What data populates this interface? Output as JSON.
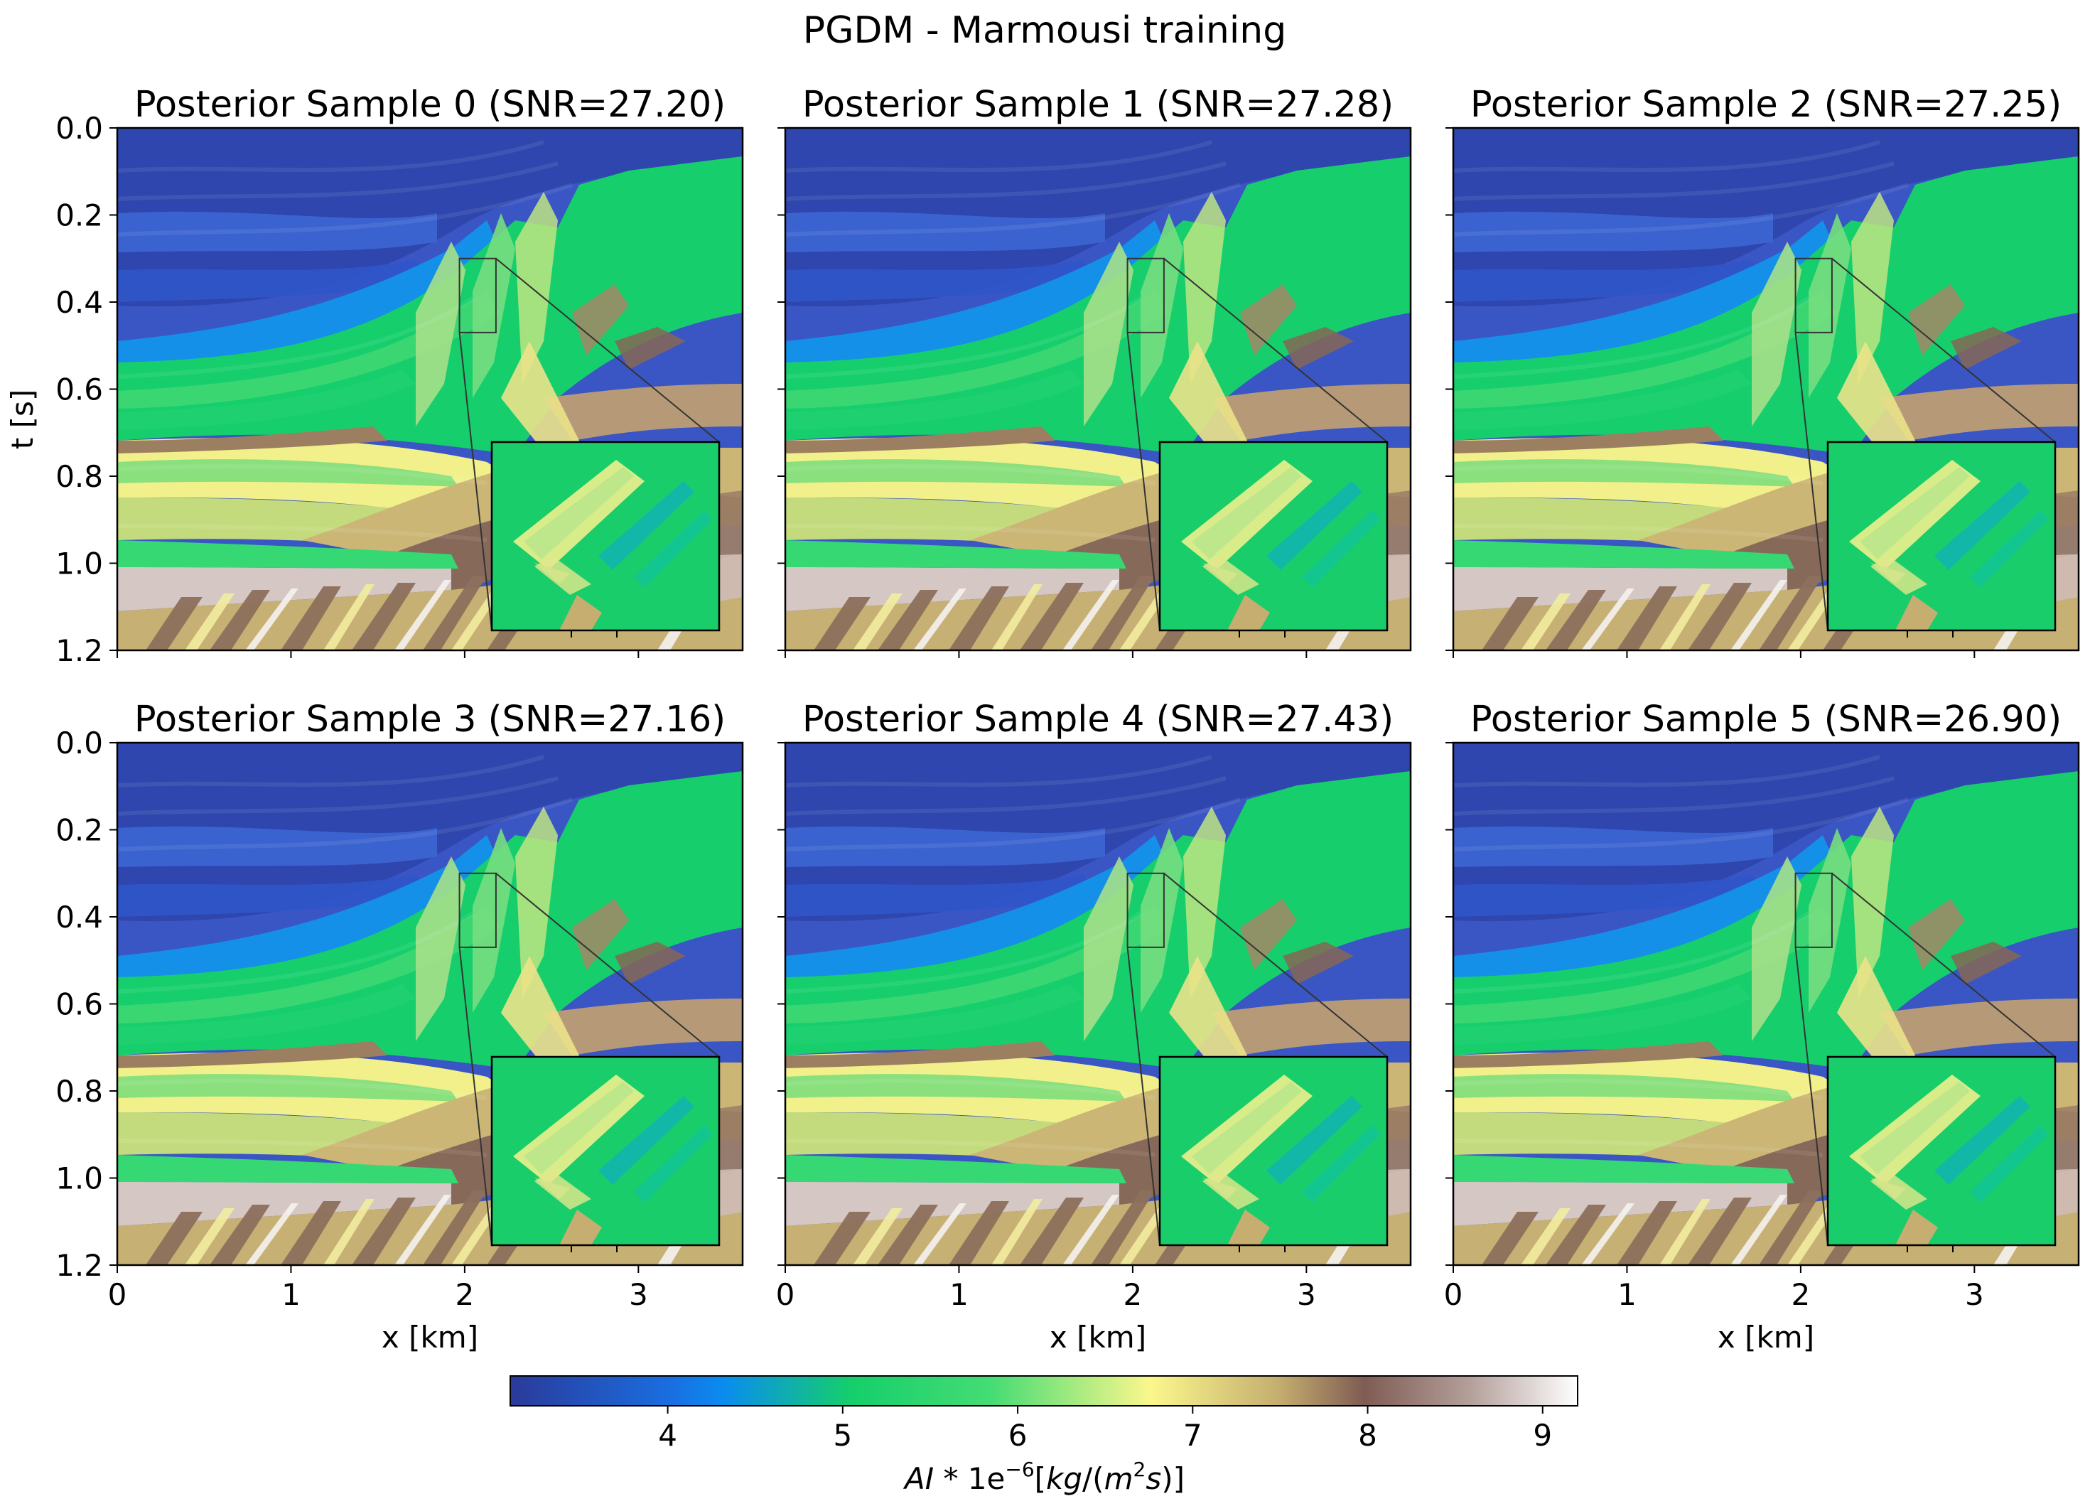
{
  "figure": {
    "suptitle": "PGDM - Marmousi training"
  },
  "chart_data": {
    "type": "heatmap",
    "description_source": "image panels of acoustic impedance sections",
    "xlabel": "x [km]",
    "ylabel": "t [s]",
    "xlim": [
      0,
      3.6
    ],
    "ylim": [
      1.2,
      0.0
    ],
    "x_ticks": [
      0,
      1,
      2,
      3
    ],
    "y_ticks": [
      0.0,
      0.2,
      0.4,
      0.6,
      0.8,
      1.0,
      1.2
    ],
    "panels": [
      {
        "title": "Posterior Sample 0 (SNR=27.20)",
        "sample": 0,
        "snr": 27.2
      },
      {
        "title": "Posterior Sample 1 (SNR=27.28)",
        "sample": 1,
        "snr": 27.28
      },
      {
        "title": "Posterior Sample 2 (SNR=27.25)",
        "sample": 2,
        "snr": 27.25
      },
      {
        "title": "Posterior Sample 3 (SNR=27.16)",
        "sample": 3,
        "snr": 27.16
      },
      {
        "title": "Posterior Sample 4 (SNR=27.43)",
        "sample": 4,
        "snr": 27.43
      },
      {
        "title": "Posterior Sample 5 (SNR=26.90)",
        "sample": 5,
        "snr": 26.9
      }
    ],
    "zoom_region": {
      "x": [
        1.97,
        2.18
      ],
      "t": [
        0.3,
        0.47
      ]
    },
    "colorbar": {
      "label": "AI * 1e-6 [kg/(m2s)]",
      "range": [
        3.1,
        9.2
      ],
      "ticks": [
        4,
        5,
        6,
        7,
        8,
        9
      ],
      "colormap": "terrain",
      "colors": [
        "#2a3a9a",
        "#0a8cf0",
        "#15cf6b",
        "#fbf78c",
        "#7f5c53",
        "#ffffff"
      ]
    }
  }
}
